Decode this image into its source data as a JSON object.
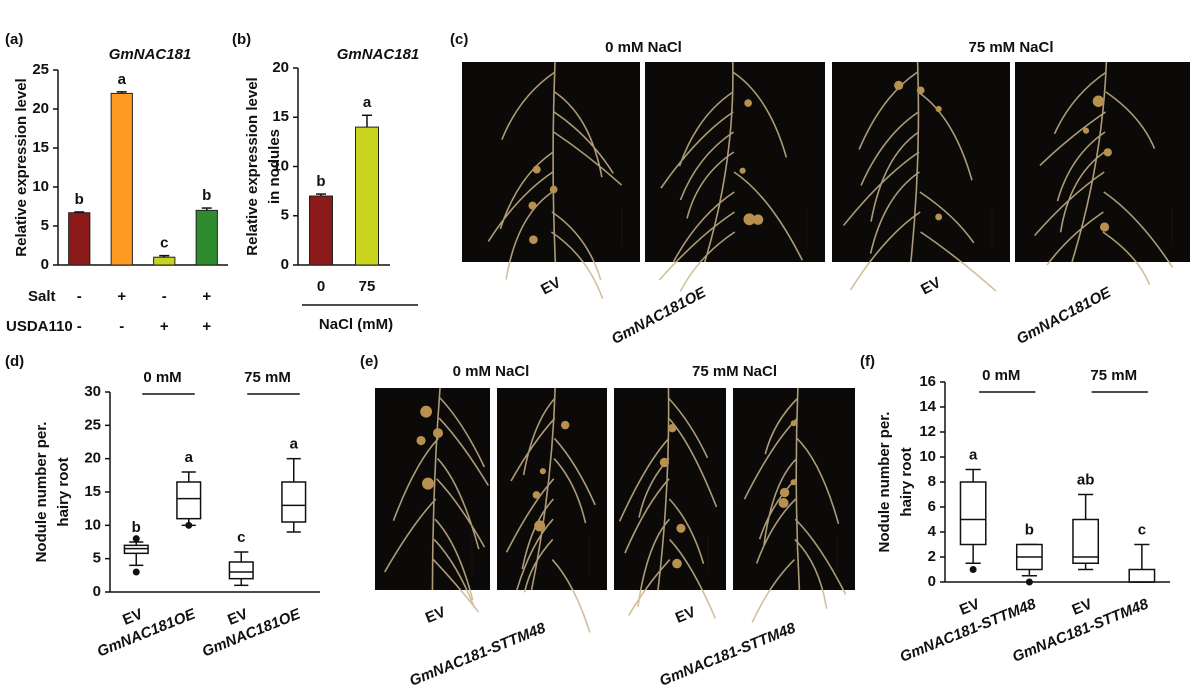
{
  "chart_data": [
    {
      "type": "bar",
      "panel_label": "(a)",
      "title": "GmNAC181",
      "y_label": [
        "Relative expression level"
      ],
      "categories": [
        null,
        null,
        null,
        null
      ],
      "values": [
        6.7,
        22,
        1,
        7
      ],
      "errors": [
        0.1,
        0.2,
        0.2,
        0.3
      ],
      "letters": [
        "b",
        "a",
        "c",
        "b"
      ],
      "colors": [
        "#8b1a1a",
        "#ff9a22",
        "#c8d41e",
        "#2e8b2e"
      ],
      "condition_rows": [
        {
          "name": "Salt",
          "values": [
            "-",
            "+",
            "-",
            "+"
          ]
        },
        {
          "name": "USDA110",
          "values": [
            "-",
            "-",
            "+",
            "+"
          ]
        }
      ],
      "ylim": [
        0,
        25
      ],
      "yticks": [
        0,
        5,
        10,
        15,
        20,
        25
      ]
    },
    {
      "type": "bar",
      "panel_label": "(b)",
      "title": "GmNAC181",
      "y_label": [
        "Relative expression level",
        "in nodules"
      ],
      "categories": [
        "0",
        "75"
      ],
      "x_label": "NaCl (mM)",
      "values": [
        7,
        14
      ],
      "errors": [
        0.2,
        1.2
      ],
      "letters": [
        "b",
        "a"
      ],
      "colors": [
        "#8b1a1a",
        "#c8d41e"
      ],
      "ylim": [
        0,
        20
      ],
      "yticks": [
        0,
        5,
        10,
        15,
        20
      ]
    },
    {
      "type": "box",
      "panel_label": "(d)",
      "y_label": [
        "Nodule number per.",
        "hairy root"
      ],
      "group_labels": [
        "0 mM",
        "75 mM"
      ],
      "categories": [
        "EV",
        "GmNAC181OE",
        "EV",
        "GmNAC181OE"
      ],
      "boxes": [
        {
          "min": 4,
          "q1": 5.8,
          "median": 6.5,
          "q3": 7,
          "max": 7.5,
          "outliers": [
            3,
            8
          ]
        },
        {
          "min": 10,
          "q1": 11,
          "median": 14,
          "q3": 16.5,
          "max": 18,
          "outliers": [
            10
          ]
        },
        {
          "min": 1,
          "q1": 2,
          "median": 3,
          "q3": 4.5,
          "max": 6,
          "outliers": []
        },
        {
          "min": 9,
          "q1": 10.5,
          "median": 13,
          "q3": 16.5,
          "max": 20,
          "outliers": []
        }
      ],
      "letters": [
        "b",
        "a",
        "c",
        "a"
      ],
      "ylim": [
        0,
        30
      ],
      "yticks": [
        0,
        5,
        10,
        15,
        20,
        25,
        30
      ]
    },
    {
      "type": "box",
      "panel_label": "(f)",
      "y_label": [
        "Nodule number per.",
        "hairy root"
      ],
      "group_labels": [
        "0 mM",
        "75 mM"
      ],
      "categories": [
        "EV",
        "GmNAC181-STTM48",
        "EV",
        "GmNAC181-STTM48"
      ],
      "boxes": [
        {
          "min": 1.5,
          "q1": 3,
          "median": 5,
          "q3": 8,
          "max": 9,
          "outliers": [
            1
          ]
        },
        {
          "min": 0.5,
          "q1": 1,
          "median": 2,
          "q3": 3,
          "max": 3,
          "outliers": [
            0
          ]
        },
        {
          "min": 1,
          "q1": 1.5,
          "median": 2,
          "q3": 5,
          "max": 7,
          "outliers": []
        },
        {
          "min": 0,
          "q1": 0,
          "median": 0,
          "q3": 1,
          "max": 3,
          "outliers": []
        }
      ],
      "letters": [
        "a",
        "b",
        "ab",
        "c"
      ],
      "ylim": [
        0,
        16
      ],
      "yticks": [
        0,
        2,
        4,
        6,
        8,
        10,
        12,
        14,
        16
      ]
    }
  ],
  "photo_panels": [
    {
      "panel_label": "(c)",
      "headers": [
        "0 mM NaCl",
        "75 mM NaCl"
      ],
      "labels": [
        "EV",
        "GmNAC181OE",
        "EV",
        "GmNAC181OE"
      ]
    },
    {
      "panel_label": "(e)",
      "headers": [
        "0 mM NaCl",
        "75 mM NaCl"
      ],
      "labels": [
        "EV",
        "GmNAC181-STTM48",
        "EV",
        "GmNAC181-STTM48"
      ]
    }
  ]
}
